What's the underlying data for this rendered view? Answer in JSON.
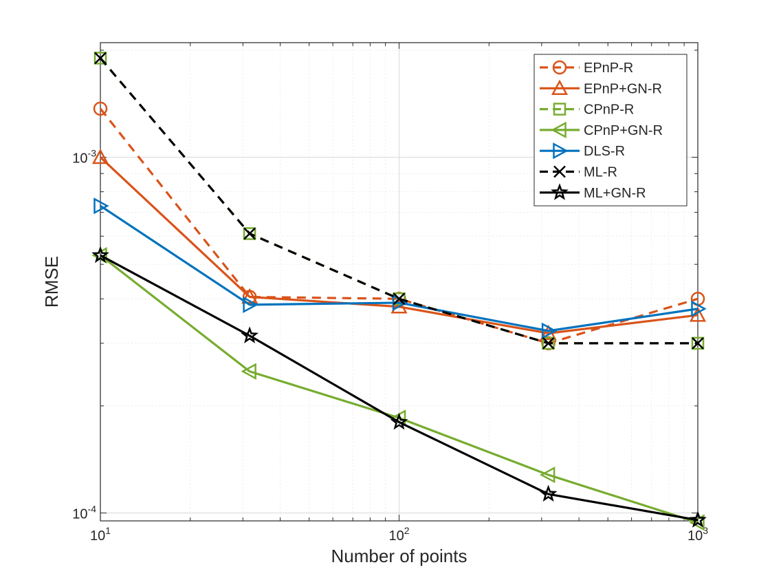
{
  "chart_data": {
    "type": "line",
    "xscale": "log",
    "yscale": "log",
    "xlabel": "Number of points",
    "ylabel": "RMSE",
    "xlim": [
      10,
      1000
    ],
    "ylim": [
      9.5e-05,
      0.0021
    ],
    "grid": true,
    "legend_position": "top-right",
    "x_tick_labels": [
      {
        "value": 10,
        "base": "10",
        "exp": "1"
      },
      {
        "value": 100,
        "base": "10",
        "exp": "2"
      },
      {
        "value": 1000,
        "base": "10",
        "exp": "3"
      }
    ],
    "y_tick_labels": [
      {
        "value": 0.0001,
        "base": "10",
        "exp": "-4"
      },
      {
        "value": 0.001,
        "base": "10",
        "exp": "-3"
      }
    ],
    "x": [
      10,
      31.6,
      100,
      316,
      1000
    ],
    "series": [
      {
        "name": "EPnP-R",
        "color": "#D95319",
        "line": "dashed",
        "marker": "circle",
        "values": [
          0.00137,
          0.000405,
          0.0004,
          0.0003,
          0.0004
        ]
      },
      {
        "name": "EPnP+GN-R",
        "color": "#D95319",
        "line": "solid",
        "marker": "triangle-up",
        "values": [
          0.001,
          0.000405,
          0.00038,
          0.00032,
          0.00036
        ]
      },
      {
        "name": "CPnP-R",
        "color": "#77AC30",
        "line": "dashed",
        "marker": "square",
        "values": [
          0.0019,
          0.00061,
          0.0004,
          0.0003,
          0.0003
        ]
      },
      {
        "name": "CPnP+GN-R",
        "color": "#77AC30",
        "line": "solid",
        "marker": "triangle-left",
        "values": [
          0.00053,
          0.00025,
          0.000185,
          0.000128,
          9.4e-05
        ]
      },
      {
        "name": "DLS-R",
        "color": "#0072BD",
        "line": "solid",
        "marker": "triangle-right",
        "values": [
          0.00073,
          0.000385,
          0.00039,
          0.000325,
          0.000375
        ]
      },
      {
        "name": "ML-R",
        "color": "#000000",
        "line": "dashed",
        "marker": "x",
        "values": [
          0.0019,
          0.00061,
          0.0004,
          0.0003,
          0.0003
        ]
      },
      {
        "name": "ML+GN-R",
        "color": "#000000",
        "line": "solid",
        "marker": "star",
        "values": [
          0.00053,
          0.000315,
          0.00018,
          0.000113,
          9.55e-05
        ]
      }
    ]
  }
}
